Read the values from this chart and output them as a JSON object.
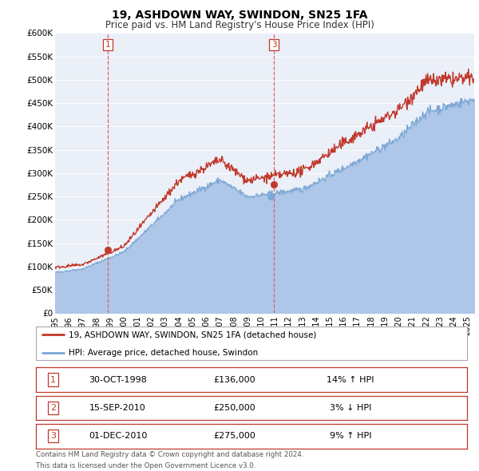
{
  "title": "19, ASHDOWN WAY, SWINDON, SN25 1FA",
  "subtitle": "Price paid vs. HM Land Registry's House Price Index (HPI)",
  "hpi_label": "HPI: Average price, detached house, Swindon",
  "property_label": "19, ASHDOWN WAY, SWINDON, SN25 1FA (detached house)",
  "ylim": [
    0,
    600000
  ],
  "yticks": [
    0,
    50000,
    100000,
    150000,
    200000,
    250000,
    300000,
    350000,
    400000,
    450000,
    500000,
    550000,
    600000
  ],
  "ytick_labels": [
    "£0",
    "£50K",
    "£100K",
    "£150K",
    "£200K",
    "£250K",
    "£300K",
    "£350K",
    "£400K",
    "£450K",
    "£500K",
    "£550K",
    "£600K"
  ],
  "hpi_color": "#aec6e8",
  "hpi_line_color": "#7ba7d4",
  "property_color": "#c0392b",
  "vline_color": "#e05555",
  "background_color": "#ffffff",
  "plot_bg_color": "#eaeff8",
  "grid_color": "#ffffff",
  "transactions": [
    {
      "num": 1,
      "date_str": "30-OCT-1998",
      "price": 136000,
      "hpi_pct": "14%",
      "hpi_dir": "↑",
      "year": 1998.83
    },
    {
      "num": 2,
      "date_str": "15-SEP-2010",
      "price": 250000,
      "hpi_pct": "3%",
      "hpi_dir": "↓",
      "year": 2010.71
    },
    {
      "num": 3,
      "date_str": "01-DEC-2010",
      "price": 275000,
      "hpi_pct": "9%",
      "hpi_dir": "↑",
      "year": 2010.92
    }
  ],
  "vlines": [
    {
      "x": 1998.83,
      "label": "1"
    },
    {
      "x": 2010.92,
      "label": "3"
    }
  ],
  "footer_line1": "Contains HM Land Registry data © Crown copyright and database right 2024.",
  "footer_line2": "This data is licensed under the Open Government Licence v3.0.",
  "xmin": 1995.0,
  "xmax": 2025.5,
  "xticks": [
    1995,
    1996,
    1997,
    1998,
    1999,
    2000,
    2001,
    2002,
    2003,
    2004,
    2005,
    2006,
    2007,
    2008,
    2009,
    2010,
    2011,
    2012,
    2013,
    2014,
    2015,
    2016,
    2017,
    2018,
    2019,
    2020,
    2021,
    2022,
    2023,
    2024,
    2025
  ]
}
